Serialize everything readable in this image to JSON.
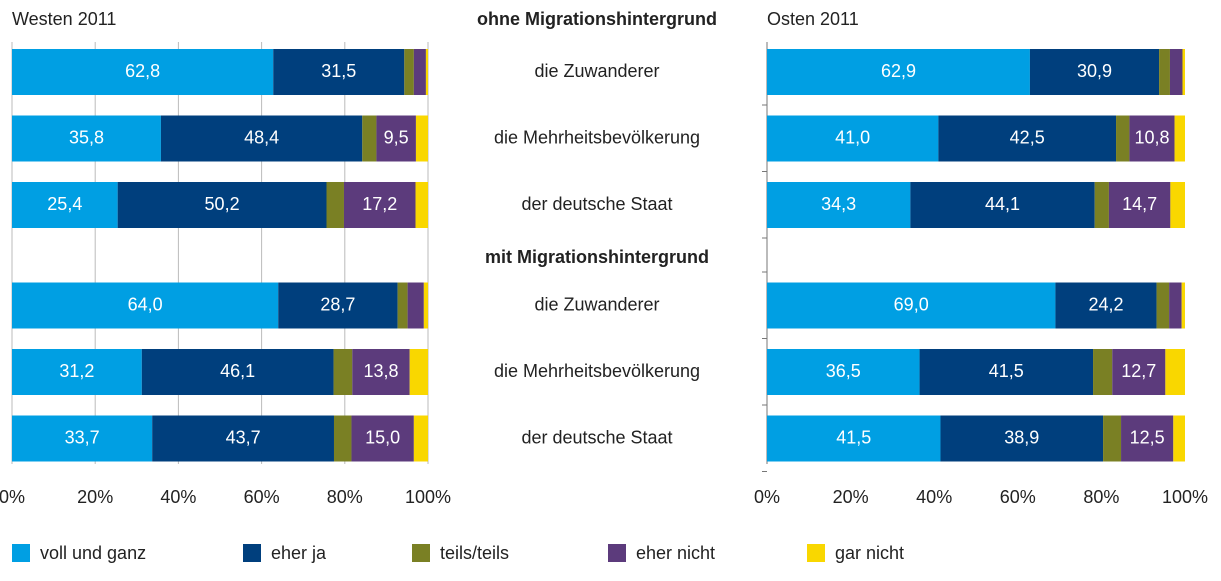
{
  "groups": [
    {
      "title": "ohne Migrationshintergrund",
      "categories": [
        "die Zuwanderer",
        "die Mehrheitsbevölkerung",
        "der deutsche Staat"
      ]
    },
    {
      "title": "mit Migrationshintergrund",
      "categories": [
        "die Zuwanderer",
        "die Mehrheitsbevölkerung",
        "der deutsche Staat"
      ]
    }
  ],
  "chart_data": [
    {
      "type": "bar",
      "orientation": "horizontal",
      "stacked": true,
      "title": "Westen 2011",
      "grid": true,
      "xlim": [
        0,
        100
      ],
      "xticks": [
        {
          "value": 0,
          "label": "0%"
        },
        {
          "value": 20,
          "label": "20%"
        },
        {
          "value": 40,
          "label": "40%"
        },
        {
          "value": 60,
          "label": "60%"
        },
        {
          "value": 80,
          "label": "80%"
        },
        {
          "value": 100,
          "label": "100%"
        }
      ],
      "series": [
        {
          "name": "voll und ganz",
          "color": "#009fe3",
          "values": [
            62.8,
            35.8,
            25.4,
            64.0,
            31.2,
            33.7
          ],
          "value_labels": [
            "62,8",
            "35,8",
            "25,4",
            "64,0",
            "31,2",
            "33,7"
          ]
        },
        {
          "name": "eher ja",
          "color": "#003f7d",
          "values": [
            31.5,
            48.4,
            50.2,
            28.7,
            46.1,
            43.7
          ],
          "value_labels": [
            "31,5",
            "48,4",
            "50,2",
            "28,7",
            "46,1",
            "43,7"
          ]
        },
        {
          "name": "teils/teils",
          "color": "#7a8024",
          "values": [
            2.3,
            3.4,
            4.2,
            2.4,
            4.5,
            4.2
          ]
        },
        {
          "name": "eher nicht",
          "color": "#5c3b7c",
          "values": [
            2.9,
            9.5,
            17.2,
            3.9,
            13.8,
            15.0
          ],
          "value_labels": [
            null,
            "9,5",
            "17,2",
            null,
            "13,8",
            "15,0"
          ]
        },
        {
          "name": "gar nicht",
          "color": "#f9d700",
          "values": [
            0.5,
            2.9,
            3.0,
            1.0,
            4.4,
            3.4
          ]
        }
      ]
    },
    {
      "type": "bar",
      "orientation": "horizontal",
      "stacked": true,
      "title": "Osten 2011",
      "grid": false,
      "xlim": [
        0,
        100
      ],
      "xticks": [
        {
          "value": 0,
          "label": "0%"
        },
        {
          "value": 20,
          "label": "20%"
        },
        {
          "value": 40,
          "label": "40%"
        },
        {
          "value": 60,
          "label": "60%"
        },
        {
          "value": 80,
          "label": "80%"
        },
        {
          "value": 100,
          "label": "100%"
        }
      ],
      "series": [
        {
          "values": [
            62.9,
            41.0,
            34.3,
            69.0,
            36.5,
            41.5
          ],
          "value_labels": [
            "62,9",
            "41,0",
            "34,3",
            "69,0",
            "36,5",
            "41,5"
          ]
        },
        {
          "values": [
            30.9,
            42.5,
            44.1,
            24.2,
            41.5,
            38.9
          ],
          "value_labels": [
            "30,9",
            "42,5",
            "44,1",
            "24,2",
            "41,5",
            "38,9"
          ]
        },
        {
          "values": [
            2.6,
            3.2,
            3.4,
            3.0,
            4.6,
            4.3
          ]
        },
        {
          "values": [
            3.0,
            10.8,
            14.7,
            3.0,
            12.7,
            12.5
          ],
          "value_labels": [
            null,
            "10,8",
            "14,7",
            null,
            "12,7",
            "12,5"
          ]
        },
        {
          "values": [
            0.6,
            2.5,
            3.5,
            0.8,
            4.7,
            2.8
          ]
        }
      ]
    }
  ]
}
